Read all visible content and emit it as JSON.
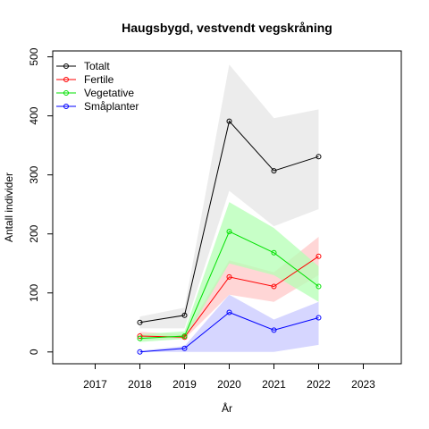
{
  "chart_data": {
    "type": "line",
    "title": "Haugsbygd, vestvendt vegskråning",
    "xlabel": "År",
    "ylabel": "Antall individer",
    "xlim": [
      2016.05,
      2023.85
    ],
    "ylim": [
      -20,
      510
    ],
    "xticks": [
      2017,
      2018,
      2019,
      2020,
      2021,
      2022,
      2023
    ],
    "yticks": [
      0,
      100,
      200,
      300,
      400,
      500
    ],
    "grid": false,
    "legend_position": "top-left",
    "x": [
      2018,
      2019,
      2020,
      2021,
      2022
    ],
    "series": [
      {
        "name": "Totalt",
        "color": "#000000",
        "band_color": "#e6e6e6",
        "values": [
          50,
          62,
          391,
          307,
          331
        ],
        "lower": [
          40,
          40,
          273,
          213,
          242
        ],
        "upper": [
          60,
          75,
          487,
          396,
          411
        ]
      },
      {
        "name": "Fertile",
        "color": "#ff0000",
        "band_color": "#ffc8c8",
        "values": [
          27,
          25,
          127,
          111,
          162
        ],
        "lower": [
          20,
          22,
          97,
          85,
          130
        ],
        "upper": [
          34,
          30,
          155,
          135,
          195
        ]
      },
      {
        "name": "Vegetative",
        "color": "#00e000",
        "band_color": "#b4ffb4",
        "values": [
          23,
          27,
          204,
          168,
          111
        ],
        "lower": [
          17,
          22,
          150,
          130,
          85
        ],
        "upper": [
          30,
          35,
          254,
          210,
          145
        ]
      },
      {
        "name": "Småplanter",
        "color": "#0000ff",
        "band_color": "#c8c8ff",
        "values": [
          0,
          6,
          67,
          37,
          58
        ],
        "lower": [
          0,
          0,
          0,
          0,
          12
        ],
        "upper": [
          2,
          10,
          97,
          55,
          85
        ]
      }
    ]
  }
}
